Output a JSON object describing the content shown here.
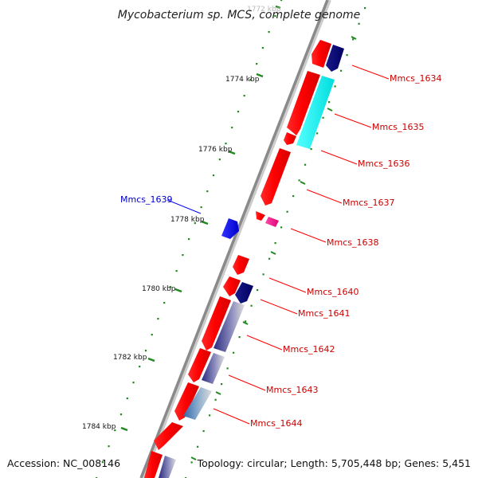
{
  "title": "Mycobacterium sp. MCS, complete genome",
  "footer": {
    "accession": "Accession: NC_008146",
    "stats": "Topology: circular; Length: 5,705,448 bp; Genes: 5,451"
  },
  "colors": {
    "forward": "#ff0000",
    "reverse": "#0000ff",
    "label_forward": "#cc0000",
    "label_reverse": "#0000cc",
    "backbone": "#999999",
    "tick": "#228822"
  },
  "scale": {
    "ticks": [
      "1772 kbp",
      "1774 kbp",
      "1776 kbp",
      "1778 kbp",
      "1780 kbp",
      "1782 kbp",
      "1784 kbp"
    ]
  },
  "gene_labels": [
    {
      "name": "Mmcs_1634",
      "strand": "forward"
    },
    {
      "name": "Mmcs_1635",
      "strand": "forward"
    },
    {
      "name": "Mmcs_1636",
      "strand": "forward"
    },
    {
      "name": "Mmcs_1637",
      "strand": "forward"
    },
    {
      "name": "Mmcs_1638",
      "strand": "forward"
    },
    {
      "name": "Mmcs_1639",
      "strand": "reverse"
    },
    {
      "name": "Mmcs_1640",
      "strand": "forward"
    },
    {
      "name": "Mmcs_1641",
      "strand": "forward"
    },
    {
      "name": "Mmcs_1642",
      "strand": "forward"
    },
    {
      "name": "Mmcs_1643",
      "strand": "forward"
    },
    {
      "name": "Mmcs_1644",
      "strand": "forward"
    }
  ]
}
